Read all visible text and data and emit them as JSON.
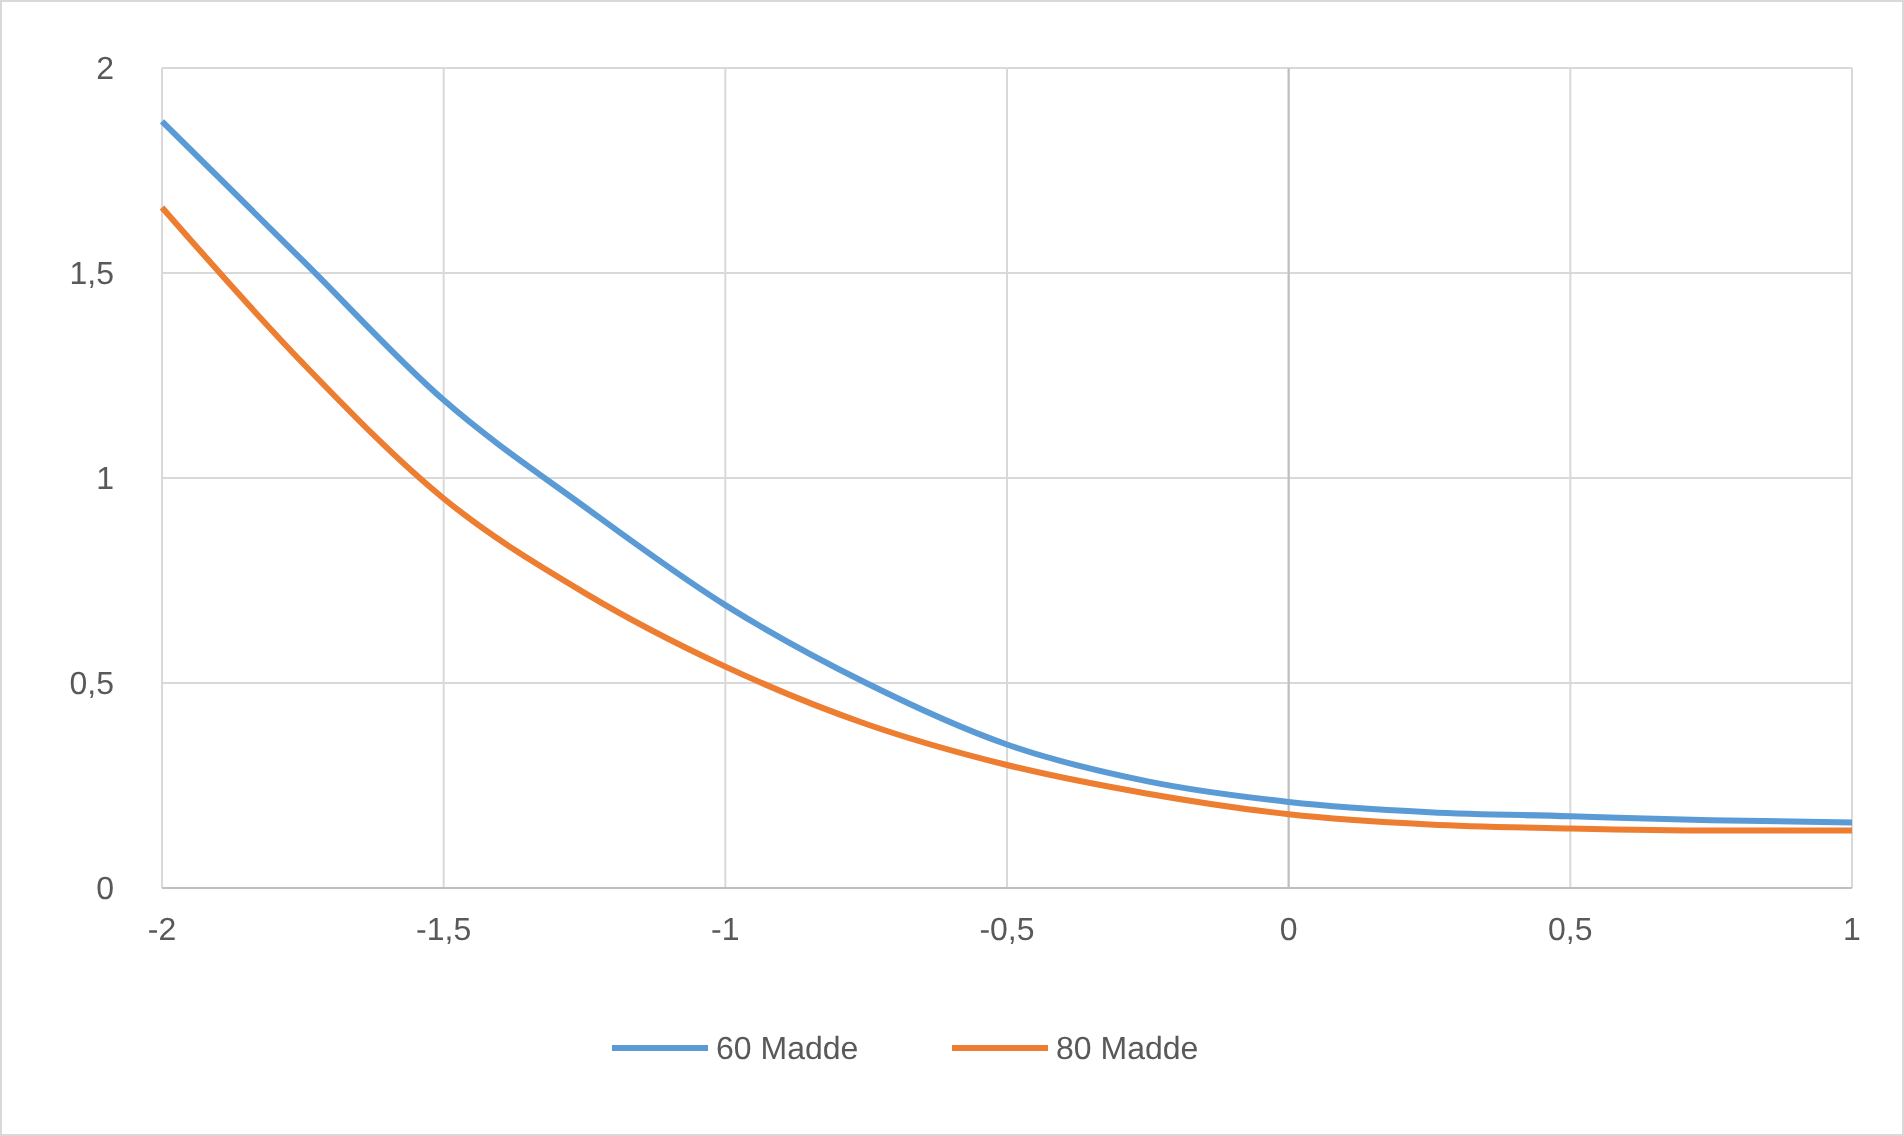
{
  "chart_data": {
    "type": "line",
    "x": [
      -2,
      -1.75,
      -1.5,
      -1.25,
      -1,
      -0.75,
      -0.5,
      -0.25,
      0,
      0.25,
      0.5,
      0.75,
      1
    ],
    "series": [
      {
        "name": "60 Madde",
        "color": "#5b9bd5",
        "values": [
          1.87,
          1.53,
          1.19,
          0.93,
          0.69,
          0.5,
          0.35,
          0.26,
          0.21,
          0.185,
          0.175,
          0.165,
          0.16
        ]
      },
      {
        "name": "80 Madde",
        "color": "#ed7d31",
        "values": [
          1.66,
          1.28,
          0.95,
          0.72,
          0.54,
          0.4,
          0.3,
          0.23,
          0.18,
          0.155,
          0.145,
          0.14,
          0.14
        ]
      }
    ],
    "xlim": [
      -2,
      1
    ],
    "xticks": [
      -2,
      {
        "value": -1.5,
        "label": "-1,5"
      },
      -1,
      {
        "value": -0.5,
        "label": "-0,5"
      },
      0,
      {
        "value": 0.5,
        "label": "0,5"
      },
      1
    ],
    "ylim": [
      0,
      2
    ],
    "yticks": [
      0,
      {
        "value": 0.5,
        "label": "0,5"
      },
      1,
      {
        "value": 1.5,
        "label": "1,5"
      },
      2
    ],
    "grid": true,
    "legend": "bottom",
    "marker": "none",
    "line_style": "solid"
  }
}
